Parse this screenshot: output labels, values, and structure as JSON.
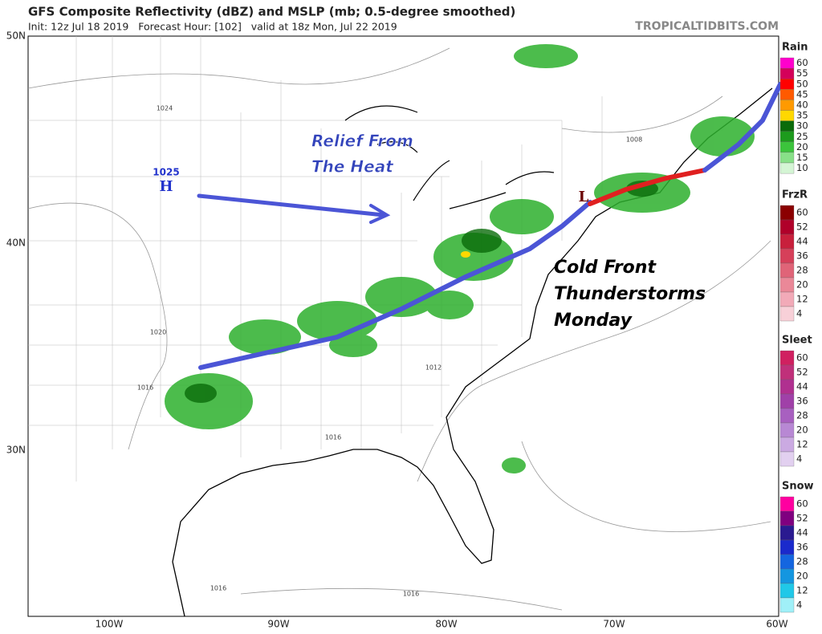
{
  "header": {
    "title": "GFS Composite Reflectivity (dBZ) and MSLP (mb; 0.5-degree smoothed)",
    "subtitle": "Init: 12z Jul 18 2019   Forecast Hour: [102]   valid at 18z Mon, Jul 22 2019",
    "site": "TROPICALTIDBITS.COM"
  },
  "map": {
    "lat_labels": [
      "50N",
      "40N",
      "30N"
    ],
    "lon_labels": [
      "100W",
      "90W",
      "80W",
      "70W",
      "60W"
    ],
    "high": {
      "pressure": "1025",
      "symbol": "H"
    },
    "low": {
      "symbol": "L"
    },
    "isobar_labels": [
      "1024",
      "1020",
      "1016",
      "1012",
      "1008",
      "1016",
      "1016",
      "1016"
    ],
    "annotations": {
      "relief": [
        "Relief From",
        "The Heat"
      ],
      "front": [
        "Cold Front",
        "Thunderstorms",
        "Monday"
      ]
    }
  },
  "legends": [
    {
      "title": "Rain",
      "labels": [
        "60",
        "55",
        "50",
        "45",
        "40",
        "35",
        "30",
        "25",
        "20",
        "15",
        "10"
      ],
      "colors": [
        "#ff00cc",
        "#d4005a",
        "#ff0000",
        "#ff5a00",
        "#ff9a00",
        "#ffd800",
        "#0a6b0a",
        "#1d9b1d",
        "#3cc43c",
        "#88e088",
        "#d4f5d4"
      ]
    },
    {
      "title": "FrzR",
      "labels": [
        "60",
        "52",
        "44",
        "36",
        "28",
        "20",
        "12",
        "4"
      ],
      "colors": [
        "#8b0000",
        "#b0002a",
        "#c8203c",
        "#d6405a",
        "#e06478",
        "#ea8898",
        "#f2aab8",
        "#f8d0d8"
      ]
    },
    {
      "title": "Sleet",
      "labels": [
        "60",
        "52",
        "44",
        "36",
        "28",
        "20",
        "12",
        "4"
      ],
      "colors": [
        "#d02060",
        "#c0307a",
        "#b03090",
        "#a040a8",
        "#a860c0",
        "#b888d4",
        "#cbaae2",
        "#e2d0f0"
      ]
    },
    {
      "title": "Snow",
      "labels": [
        "60",
        "52",
        "44",
        "36",
        "28",
        "20",
        "12",
        "4"
      ],
      "colors": [
        "#ff00a0",
        "#800080",
        "#2a1a90",
        "#1a2acc",
        "#1466e0",
        "#1496e0",
        "#20c8e8",
        "#a0f0f8"
      ]
    }
  ]
}
